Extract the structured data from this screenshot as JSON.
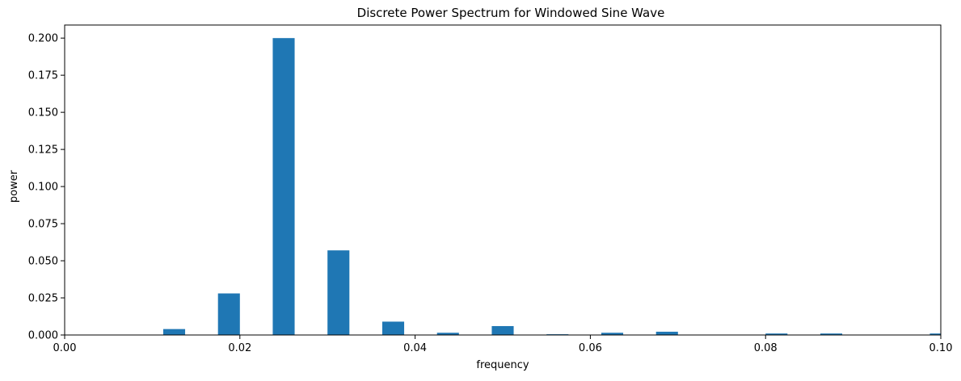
{
  "chart_data": {
    "type": "bar",
    "title": "Discrete Power Spectrum for Windowed Sine Wave",
    "xlabel": "frequency",
    "ylabel": "power",
    "xlim": [
      0.0,
      0.1
    ],
    "ylim": [
      0.0,
      0.2088
    ],
    "x_ticks": [
      0.0,
      0.02,
      0.04,
      0.06,
      0.08,
      0.1
    ],
    "x_tick_labels": [
      "0.00",
      "0.02",
      "0.04",
      "0.06",
      "0.08",
      "0.10"
    ],
    "y_ticks": [
      0.0,
      0.025,
      0.05,
      0.075,
      0.1,
      0.125,
      0.15,
      0.175,
      0.2
    ],
    "y_tick_labels": [
      "0.000",
      "0.025",
      "0.050",
      "0.075",
      "0.100",
      "0.125",
      "0.150",
      "0.175",
      "0.200"
    ],
    "grid": false,
    "legend": "none",
    "bar_color": "#1f77b4",
    "bar_width": 0.0025,
    "x": [
      0.00625,
      0.0125,
      0.01875,
      0.025,
      0.03125,
      0.0375,
      0.04375,
      0.05,
      0.05625,
      0.0625,
      0.06875,
      0.075,
      0.08125,
      0.0875,
      0.09375,
      0.1
    ],
    "values": [
      0.0,
      0.004,
      0.028,
      0.2,
      0.057,
      0.009,
      0.0015,
      0.006,
      0.0005,
      0.0015,
      0.0022,
      0.0,
      0.001,
      0.001,
      0.0,
      0.001
    ]
  }
}
